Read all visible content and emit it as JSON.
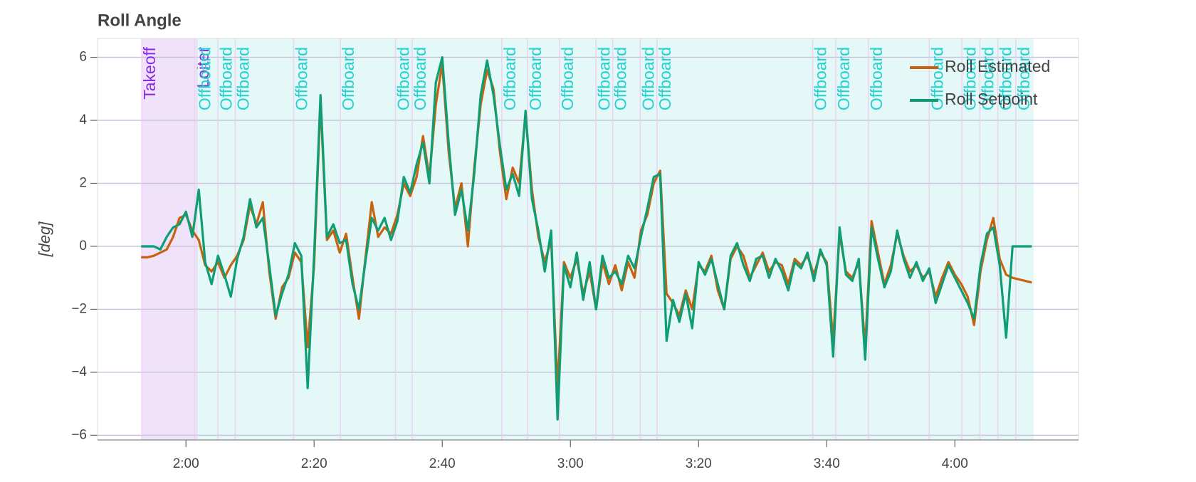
{
  "chart_data": {
    "type": "line",
    "title": "Roll Angle",
    "y_label": "[deg]",
    "xlim": [
      106.2,
      259.3
    ],
    "ylim": [
      -6.15,
      6.6
    ],
    "xticks": [
      {
        "value": 120,
        "label": "2:00"
      },
      {
        "value": 140,
        "label": "2:20"
      },
      {
        "value": 160,
        "label": "2:40"
      },
      {
        "value": 180,
        "label": "3:00"
      },
      {
        "value": 200,
        "label": "3:20"
      },
      {
        "value": 220,
        "label": "3:40"
      },
      {
        "value": 240,
        "label": "4:00"
      }
    ],
    "yticks": [
      {
        "value": -6,
        "label": "−6"
      },
      {
        "value": -4,
        "label": "−4"
      },
      {
        "value": -2,
        "label": "−2"
      },
      0,
      2,
      4,
      6
    ],
    "grid": true,
    "legend": "top-right",
    "regions": [
      {
        "start": 113.1,
        "end": 121.4,
        "color": "#efe2fa"
      },
      {
        "start": 121.4,
        "end": 252.3,
        "color": "#e4f8f7"
      }
    ],
    "mode_changes": [
      {
        "time": 113.1,
        "label": "Takeoff",
        "color": "#8a2be2"
      },
      {
        "time": 121.4,
        "label": "Loiter",
        "color": "#8a2be2"
      },
      {
        "time": 121.7,
        "label": "Offboard",
        "color": "#22d1d1"
      },
      {
        "time": 125.0,
        "label": "Offboard",
        "color": "#22d1d1"
      },
      {
        "time": 127.7,
        "label": "Offboard",
        "color": "#22d1d1"
      },
      {
        "time": 136.8,
        "label": "Offboard",
        "color": "#22d1d1"
      },
      {
        "time": 144.1,
        "label": "Offboard",
        "color": "#22d1d1"
      },
      {
        "time": 152.7,
        "label": "Offboard",
        "color": "#22d1d1"
      },
      {
        "time": 155.3,
        "label": "Offboard",
        "color": "#22d1d1"
      },
      {
        "time": 169.3,
        "label": "Offboard",
        "color": "#22d1d1"
      },
      {
        "time": 173.3,
        "label": "Offboard",
        "color": "#22d1d1"
      },
      {
        "time": 178.3,
        "label": "Offboard",
        "color": "#22d1d1"
      },
      {
        "time": 184.0,
        "label": "Offboard",
        "color": "#22d1d1"
      },
      {
        "time": 186.6,
        "label": "Offboard",
        "color": "#22d1d1"
      },
      {
        "time": 190.9,
        "label": "Offboard",
        "color": "#22d1d1"
      },
      {
        "time": 193.5,
        "label": "Offboard",
        "color": "#22d1d1"
      },
      {
        "time": 217.8,
        "label": "Offboard",
        "color": "#22d1d1"
      },
      {
        "time": 221.4,
        "label": "Offboard",
        "color": "#22d1d1"
      },
      {
        "time": 226.5,
        "label": "Offboard",
        "color": "#22d1d1"
      },
      {
        "time": 236.0,
        "label": "Offboard",
        "color": "#22d1d1"
      },
      {
        "time": 241.1,
        "label": "Offboard",
        "color": "#22d1d1"
      },
      {
        "time": 243.9,
        "label": "Offboard",
        "color": "#22d1d1"
      },
      {
        "time": 246.7,
        "label": "Offboard",
        "color": "#22d1d1"
      },
      {
        "time": 249.5,
        "label": "Offboard",
        "color": "#22d1d1"
      }
    ],
    "x": [
      113,
      114,
      115,
      116,
      117,
      118,
      119,
      120,
      121,
      122,
      123,
      124,
      125,
      126,
      127,
      128,
      129,
      130,
      131,
      132,
      133,
      134,
      135,
      136,
      137,
      138,
      139,
      140,
      141,
      142,
      143,
      144,
      145,
      146,
      147,
      148,
      149,
      150,
      151,
      152,
      153,
      154,
      155,
      156,
      157,
      158,
      159,
      160,
      161,
      162,
      163,
      164,
      165,
      166,
      167,
      168,
      169,
      170,
      171,
      172,
      173,
      174,
      175,
      176,
      177,
      178,
      179,
      180,
      181,
      182,
      183,
      184,
      185,
      186,
      187,
      188,
      189,
      190,
      191,
      192,
      193,
      194,
      195,
      196,
      197,
      198,
      199,
      200,
      201,
      202,
      203,
      204,
      205,
      206,
      207,
      208,
      209,
      210,
      211,
      212,
      213,
      214,
      215,
      216,
      217,
      218,
      219,
      220,
      221,
      222,
      223,
      224,
      225,
      226,
      227,
      228,
      229,
      230,
      231,
      232,
      233,
      234,
      235,
      236,
      237,
      238,
      239,
      240,
      241,
      242,
      243,
      244,
      245,
      246,
      247,
      248,
      249,
      250,
      251,
      252
    ],
    "series": [
      {
        "name": "Roll Estimated",
        "color": "#c9620e",
        "values": [
          -0.35,
          -0.35,
          -0.3,
          -0.2,
          -0.1,
          0.3,
          0.9,
          1.0,
          0.5,
          0.2,
          -0.6,
          -0.8,
          -0.5,
          -1.0,
          -0.6,
          -0.3,
          0.2,
          1.3,
          0.7,
          1.4,
          -0.8,
          -2.3,
          -1.3,
          -1.0,
          -0.2,
          -0.5,
          -3.2,
          -0.6,
          4.6,
          0.2,
          0.5,
          -0.2,
          0.4,
          -1.0,
          -2.3,
          -0.4,
          1.4,
          0.3,
          0.6,
          0.4,
          1.0,
          2.0,
          1.6,
          2.2,
          3.5,
          2.2,
          4.5,
          5.8,
          3.0,
          1.2,
          2.0,
          0.0,
          2.5,
          4.5,
          5.6,
          5.0,
          3.0,
          1.5,
          2.5,
          2.0,
          4.2,
          1.8,
          0.3,
          -0.5,
          0.2,
          -4.5,
          -0.5,
          -1.0,
          -0.4,
          -1.5,
          -0.8,
          -2.0,
          -0.5,
          -1.2,
          -0.6,
          -1.4,
          -0.5,
          -1.0,
          0.5,
          1.0,
          2.0,
          2.4,
          -1.5,
          -1.8,
          -2.2,
          -1.4,
          -2.0,
          -0.6,
          -0.8,
          -0.3,
          -1.4,
          -2.0,
          -0.4,
          0.0,
          -0.3,
          -1.0,
          -0.6,
          -0.2,
          -0.8,
          -0.5,
          -0.6,
          -1.2,
          -0.4,
          -0.6,
          -0.3,
          -0.9,
          -0.2,
          -0.5,
          -3.0,
          0.4,
          -0.8,
          -1.0,
          -0.5,
          -3.2,
          0.8,
          -0.2,
          -1.2,
          -0.6,
          0.4,
          -0.3,
          -0.8,
          -0.6,
          -1.0,
          -0.8,
          -1.6,
          -1.0,
          -0.5,
          -0.9,
          -1.2,
          -1.6,
          -2.5,
          -0.8,
          0.2,
          0.9,
          -0.4,
          -0.9,
          -1.0,
          -1.05,
          -1.1,
          -1.15
        ]
      },
      {
        "name": "Roll Setpoint",
        "color": "#0f9d74",
        "values": [
          0,
          0,
          0,
          -0.1,
          0.3,
          0.6,
          0.7,
          1.1,
          0.3,
          1.8,
          -0.5,
          -1.2,
          -0.3,
          -0.9,
          -1.6,
          -0.4,
          0.3,
          1.5,
          0.6,
          0.9,
          -0.6,
          -2.2,
          -1.5,
          -0.9,
          0.1,
          -0.3,
          -4.5,
          -0.3,
          4.8,
          0.3,
          0.7,
          0.1,
          0.2,
          -1.2,
          -2.0,
          -0.5,
          0.9,
          0.5,
          0.9,
          0.2,
          0.8,
          2.2,
          1.7,
          2.6,
          3.3,
          2.0,
          5.2,
          6.0,
          3.3,
          1.0,
          1.8,
          0.5,
          2.3,
          4.8,
          5.9,
          4.8,
          3.2,
          1.8,
          2.3,
          1.6,
          4.3,
          1.5,
          0.5,
          -0.8,
          0.5,
          -5.5,
          -0.6,
          -1.3,
          -0.2,
          -1.7,
          -0.5,
          -2.0,
          -0.3,
          -1.0,
          -0.8,
          -1.2,
          -0.3,
          -0.7,
          0.3,
          1.2,
          2.2,
          2.3,
          -3.0,
          -1.7,
          -2.4,
          -1.5,
          -2.6,
          -0.5,
          -0.9,
          -0.4,
          -1.2,
          -2.0,
          -0.3,
          0.1,
          -0.6,
          -1.1,
          -0.4,
          -0.3,
          -1.0,
          -0.4,
          -0.8,
          -1.4,
          -0.5,
          -0.7,
          -0.2,
          -1.1,
          -0.1,
          -0.6,
          -3.5,
          0.6,
          -0.9,
          -1.1,
          -0.4,
          -3.6,
          0.6,
          -0.4,
          -1.3,
          -0.8,
          0.5,
          -0.4,
          -1.0,
          -0.5,
          -1.1,
          -0.7,
          -1.8,
          -1.2,
          -0.6,
          -1.0,
          -1.4,
          -1.8,
          -2.3,
          -0.6,
          0.4,
          0.6,
          -0.6,
          -2.9,
          0,
          0,
          0,
          0
        ]
      }
    ]
  }
}
